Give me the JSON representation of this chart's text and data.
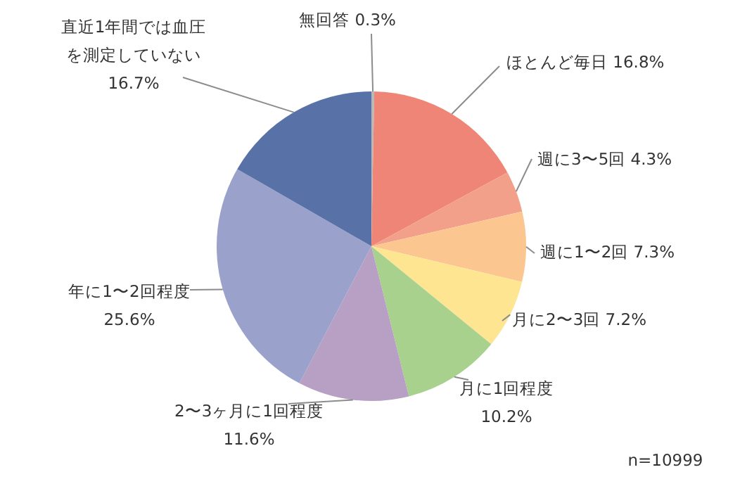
{
  "chart_data": {
    "type": "pie",
    "categories": [
      "無回答",
      "ほとんど毎日",
      "週に3〜5回",
      "週に1〜2回",
      "月に2〜3回",
      "月に1回程度",
      "2〜3ヶ月に1回程度",
      "年に1〜2回程度",
      "直近1年間では血圧を測定していない"
    ],
    "values": [
      0.3,
      16.8,
      4.3,
      7.3,
      7.2,
      10.2,
      11.6,
      25.6,
      16.7
    ],
    "colors": [
      "#b8b8b8",
      "#ee8577",
      "#f2a08a",
      "#fbc690",
      "#fde591",
      "#a9d18e",
      "#b89fc4",
      "#9aa2cb",
      "#5872a8"
    ],
    "value_labels": [
      "0.3%",
      "16.8%",
      "4.3%",
      "7.3%",
      "7.2%",
      "10.2%",
      "11.6%",
      "25.6%",
      "16.7%"
    ],
    "annotations": [
      "n=10999"
    ]
  }
}
